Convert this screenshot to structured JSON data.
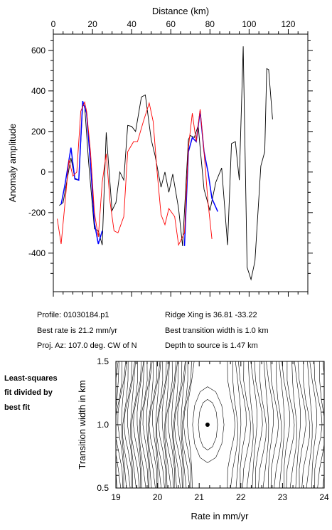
{
  "chart_data": [
    {
      "type": "line",
      "xlabel": "Distance (km)",
      "ylabel": "Anomaly amplitude",
      "xlim": [
        0,
        130
      ],
      "ylim": [
        -590,
        680
      ],
      "x_ticks": [
        0,
        20,
        40,
        60,
        80,
        100,
        120
      ],
      "y_ticks": [
        -400,
        -200,
        0,
        200,
        400,
        600
      ],
      "series": [
        {
          "color": "#000000",
          "points": [
            [
              3,
              -165
            ],
            [
              5,
              -150
            ],
            [
              9,
              70
            ],
            [
              11,
              -30
            ],
            [
              13,
              -40
            ],
            [
              15,
              330
            ],
            [
              16,
              325
            ],
            [
              18,
              50
            ],
            [
              21,
              -280
            ],
            [
              23,
              -290
            ],
            [
              25,
              -360
            ],
            [
              27,
              195
            ],
            [
              30,
              -190
            ],
            [
              32,
              -150
            ],
            [
              34,
              0
            ],
            [
              36,
              -40
            ],
            [
              38,
              230
            ],
            [
              40,
              225
            ],
            [
              42,
              200
            ],
            [
              45,
              370
            ],
            [
              47,
              380
            ],
            [
              50,
              160
            ],
            [
              52,
              80
            ],
            [
              55,
              -75
            ],
            [
              57,
              0
            ],
            [
              59,
              -100
            ],
            [
              61,
              -10
            ],
            [
              64,
              -180
            ],
            [
              66,
              -365
            ],
            [
              69,
              160
            ],
            [
              70,
              180
            ],
            [
              72,
              170
            ],
            [
              74,
              230
            ],
            [
              75,
              120
            ],
            [
              77,
              -85
            ],
            [
              78,
              -120
            ],
            [
              80,
              -190
            ],
            [
              83,
              -50
            ],
            [
              86,
              20
            ],
            [
              89,
              -360
            ],
            [
              91,
              140
            ],
            [
              93,
              150
            ],
            [
              95,
              -40
            ],
            [
              97,
              620
            ],
            [
              99,
              -470
            ],
            [
              101,
              -530
            ],
            [
              103,
              -440
            ],
            [
              106,
              30
            ],
            [
              108,
              100
            ],
            [
              109,
              510
            ],
            [
              110,
              505
            ],
            [
              112,
              260
            ]
          ]
        },
        {
          "color": "#0000ff",
          "points": [
            [
              4,
              -160
            ],
            [
              6,
              -60
            ],
            [
              9,
              120
            ],
            [
              11,
              -35
            ],
            [
              13,
              -40
            ],
            [
              15,
              350
            ],
            [
              17,
              290
            ],
            [
              19,
              40
            ],
            [
              21,
              -250
            ],
            [
              23,
              -355
            ],
            [
              25,
              -290
            ]
          ]
        },
        {
          "color": "#0000ff",
          "points": [
            [
              67,
              -365
            ],
            [
              69,
              100
            ],
            [
              71,
              170
            ],
            [
              73,
              150
            ],
            [
              75,
              300
            ],
            [
              77,
              100
            ],
            [
              79,
              0
            ],
            [
              81,
              -130
            ],
            [
              84,
              -195
            ]
          ]
        },
        {
          "color": "#ff0000",
          "points": [
            [
              2,
              -230
            ],
            [
              4,
              -355
            ],
            [
              6,
              -150
            ],
            [
              8,
              60
            ],
            [
              10,
              -20
            ],
            [
              12,
              0
            ],
            [
              14,
              300
            ],
            [
              16,
              345
            ],
            [
              17,
              300
            ],
            [
              19,
              100
            ],
            [
              21,
              -200
            ],
            [
              23,
              -320
            ],
            [
              25,
              -50
            ],
            [
              27,
              90
            ],
            [
              29,
              -150
            ],
            [
              31,
              -290
            ],
            [
              33,
              -300
            ],
            [
              36,
              -220
            ],
            [
              38,
              100
            ],
            [
              41,
              150
            ],
            [
              43,
              150
            ],
            [
              46,
              250
            ],
            [
              49,
              340
            ],
            [
              51,
              250
            ],
            [
              53,
              0
            ],
            [
              55,
              -210
            ],
            [
              57,
              -260
            ],
            [
              59,
              -180
            ],
            [
              62,
              -220
            ],
            [
              64,
              -360
            ],
            [
              67,
              -300
            ],
            [
              69,
              120
            ],
            [
              71,
              290
            ],
            [
              73,
              150
            ],
            [
              75,
              310
            ],
            [
              77,
              100
            ],
            [
              79,
              -150
            ],
            [
              81,
              -330
            ]
          ]
        }
      ]
    },
    {
      "type": "contour",
      "xlabel": "Rate in mm/yr",
      "ylabel": "Transition width in km",
      "xlim": [
        19,
        24
      ],
      "ylim": [
        0.5,
        1.5
      ],
      "x_ticks": [
        19,
        20,
        21,
        22,
        23,
        24
      ],
      "y_ticks": [
        0.5,
        1.0,
        1.5
      ],
      "best_fit_point": [
        21.2,
        1.0
      ]
    }
  ],
  "info": {
    "profile": "Profile: 01030184.p1",
    "ridge_xing": "Ridge Xing is 36.81 -33.22",
    "best_rate": "Best rate is 21.2 mm/yr",
    "best_width": "Best transition width is 1.0 km",
    "proj_az": "Proj. Az: 107.0 deg. CW of N",
    "depth": "Depth to source is   1.47 km"
  },
  "side_note": {
    "line1": "Least-squares",
    "line2": "fit divided by",
    "line3": "best fit"
  }
}
